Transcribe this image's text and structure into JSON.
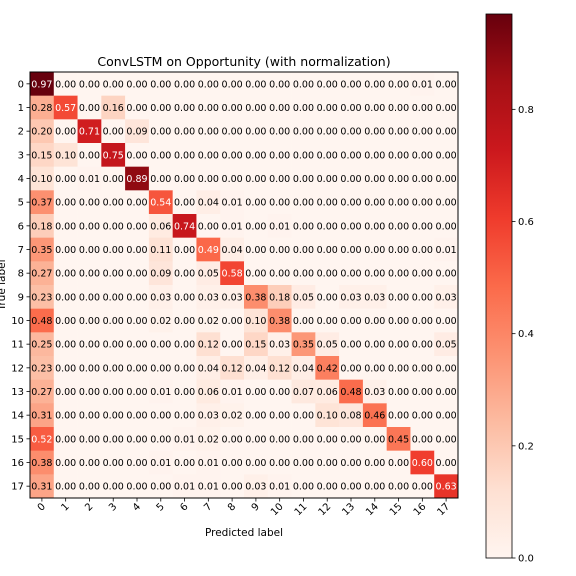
{
  "chart_data": {
    "type": "heatmap",
    "title": "ConvLSTM on Opportunity (with normalization)",
    "xlabel": "Predicted label",
    "ylabel": "True label",
    "x_tick_labels": [
      "0",
      "1",
      "2",
      "3",
      "4",
      "5",
      "6",
      "7",
      "8",
      "9",
      "10",
      "11",
      "12",
      "13",
      "14",
      "15",
      "16",
      "17"
    ],
    "y_tick_labels": [
      "0",
      "1",
      "2",
      "3",
      "4",
      "5",
      "6",
      "7",
      "8",
      "9",
      "10",
      "11",
      "12",
      "13",
      "14",
      "15",
      "16",
      "17"
    ],
    "colormap": "Reds",
    "value_range": [
      0,
      0.97
    ],
    "colorbar_ticks": [
      "0.0",
      "0.2",
      "0.4",
      "0.6",
      "0.8"
    ],
    "matrix": [
      [
        0.97,
        0.0,
        0.0,
        0.0,
        0.0,
        0.0,
        0.0,
        0.0,
        0.0,
        0.0,
        0.0,
        0.0,
        0.0,
        0.0,
        0.0,
        0.0,
        0.01,
        0.0
      ],
      [
        0.28,
        0.57,
        0.0,
        0.16,
        0.0,
        0.0,
        0.0,
        0.0,
        0.0,
        0.0,
        0.0,
        0.0,
        0.0,
        0.0,
        0.0,
        0.0,
        0.0,
        0.0
      ],
      [
        0.2,
        0.0,
        0.71,
        0.0,
        0.09,
        0.0,
        0.0,
        0.0,
        0.0,
        0.0,
        0.0,
        0.0,
        0.0,
        0.0,
        0.0,
        0.0,
        0.0,
        0.0
      ],
      [
        0.15,
        0.1,
        0.0,
        0.75,
        0.0,
        0.0,
        0.0,
        0.0,
        0.0,
        0.0,
        0.0,
        0.0,
        0.0,
        0.0,
        0.0,
        0.0,
        0.0,
        0.0
      ],
      [
        0.1,
        0.0,
        0.01,
        0.0,
        0.89,
        0.0,
        0.0,
        0.0,
        0.0,
        0.0,
        0.0,
        0.0,
        0.0,
        0.0,
        0.0,
        0.0,
        0.0,
        0.0
      ],
      [
        0.37,
        0.0,
        0.0,
        0.0,
        0.0,
        0.54,
        0.0,
        0.04,
        0.01,
        0.0,
        0.0,
        0.0,
        0.0,
        0.0,
        0.0,
        0.0,
        0.0,
        0.0
      ],
      [
        0.18,
        0.0,
        0.0,
        0.0,
        0.0,
        0.06,
        0.74,
        0.0,
        0.01,
        0.0,
        0.01,
        0.0,
        0.0,
        0.0,
        0.0,
        0.0,
        0.0,
        0.0
      ],
      [
        0.35,
        0.0,
        0.0,
        0.0,
        0.0,
        0.11,
        0.0,
        0.49,
        0.04,
        0.0,
        0.0,
        0.0,
        0.0,
        0.0,
        0.0,
        0.0,
        0.0,
        0.01
      ],
      [
        0.27,
        0.0,
        0.0,
        0.0,
        0.0,
        0.09,
        0.0,
        0.05,
        0.58,
        0.0,
        0.0,
        0.0,
        0.0,
        0.0,
        0.0,
        0.0,
        0.0,
        0.0
      ],
      [
        0.23,
        0.0,
        0.0,
        0.0,
        0.0,
        0.03,
        0.0,
        0.03,
        0.03,
        0.38,
        0.18,
        0.05,
        0.0,
        0.03,
        0.03,
        0.0,
        0.0,
        0.03
      ],
      [
        0.48,
        0.0,
        0.0,
        0.0,
        0.0,
        0.02,
        0.0,
        0.02,
        0.0,
        0.1,
        0.38,
        0.0,
        0.0,
        0.0,
        0.0,
        0.0,
        0.0,
        0.0
      ],
      [
        0.25,
        0.0,
        0.0,
        0.0,
        0.0,
        0.0,
        0.0,
        0.12,
        0.0,
        0.15,
        0.03,
        0.35,
        0.05,
        0.0,
        0.0,
        0.0,
        0.0,
        0.05
      ],
      [
        0.23,
        0.0,
        0.0,
        0.0,
        0.0,
        0.0,
        0.0,
        0.04,
        0.12,
        0.04,
        0.12,
        0.04,
        0.42,
        0.0,
        0.0,
        0.0,
        0.0,
        0.0
      ],
      [
        0.27,
        0.0,
        0.0,
        0.0,
        0.0,
        0.01,
        0.0,
        0.06,
        0.01,
        0.0,
        0.0,
        0.07,
        0.06,
        0.48,
        0.03,
        0.0,
        0.0,
        0.0
      ],
      [
        0.31,
        0.0,
        0.0,
        0.0,
        0.0,
        0.0,
        0.0,
        0.03,
        0.02,
        0.0,
        0.0,
        0.0,
        0.1,
        0.08,
        0.46,
        0.0,
        0.0,
        0.0
      ],
      [
        0.52,
        0.0,
        0.0,
        0.0,
        0.0,
        0.0,
        0.01,
        0.02,
        0.0,
        0.0,
        0.0,
        0.0,
        0.0,
        0.0,
        0.0,
        0.45,
        0.0,
        0.0
      ],
      [
        0.38,
        0.0,
        0.0,
        0.0,
        0.0,
        0.01,
        0.0,
        0.01,
        0.0,
        0.0,
        0.0,
        0.0,
        0.0,
        0.0,
        0.0,
        0.0,
        0.6,
        0.0
      ],
      [
        0.31,
        0.0,
        0.0,
        0.0,
        0.0,
        0.0,
        0.01,
        0.01,
        0.0,
        0.03,
        0.01,
        0.0,
        0.0,
        0.0,
        0.0,
        0.0,
        0.0,
        0.63
      ]
    ]
  }
}
